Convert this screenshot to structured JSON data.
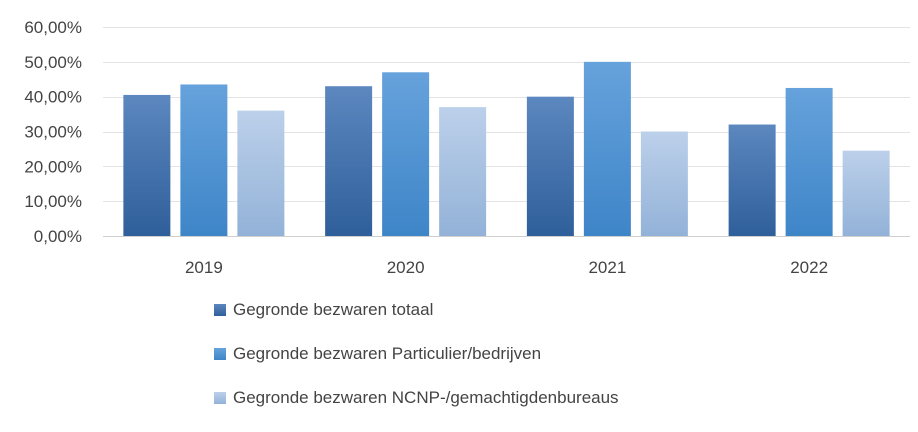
{
  "chart_data": {
    "type": "bar",
    "title": "",
    "xlabel": "",
    "ylabel": "",
    "categories": [
      "2019",
      "2020",
      "2021",
      "2022"
    ],
    "ylim": [
      0,
      60
    ],
    "yticks": [
      0,
      10,
      20,
      30,
      40,
      50,
      60
    ],
    "ytick_labels": [
      "0,00%",
      "10,00%",
      "20,00%",
      "30,00%",
      "40,00%",
      "50,00%",
      "60,00%"
    ],
    "grid": true,
    "legend_position": "bottom",
    "series": [
      {
        "name": "Gegronde bezwaren totaal",
        "values": [
          40.5,
          43,
          40,
          32
        ],
        "color": "#3F6FA8"
      },
      {
        "name": "Gegronde bezwaren Particulier/bedrijven",
        "values": [
          43.5,
          47,
          50,
          42.5
        ],
        "color": "#4A90D0"
      },
      {
        "name": "Gegronde bezwaren NCNP-/gemachtigdenbureaus",
        "values": [
          36,
          37,
          30,
          24.5
        ],
        "color": "#A7C1E0"
      }
    ]
  }
}
